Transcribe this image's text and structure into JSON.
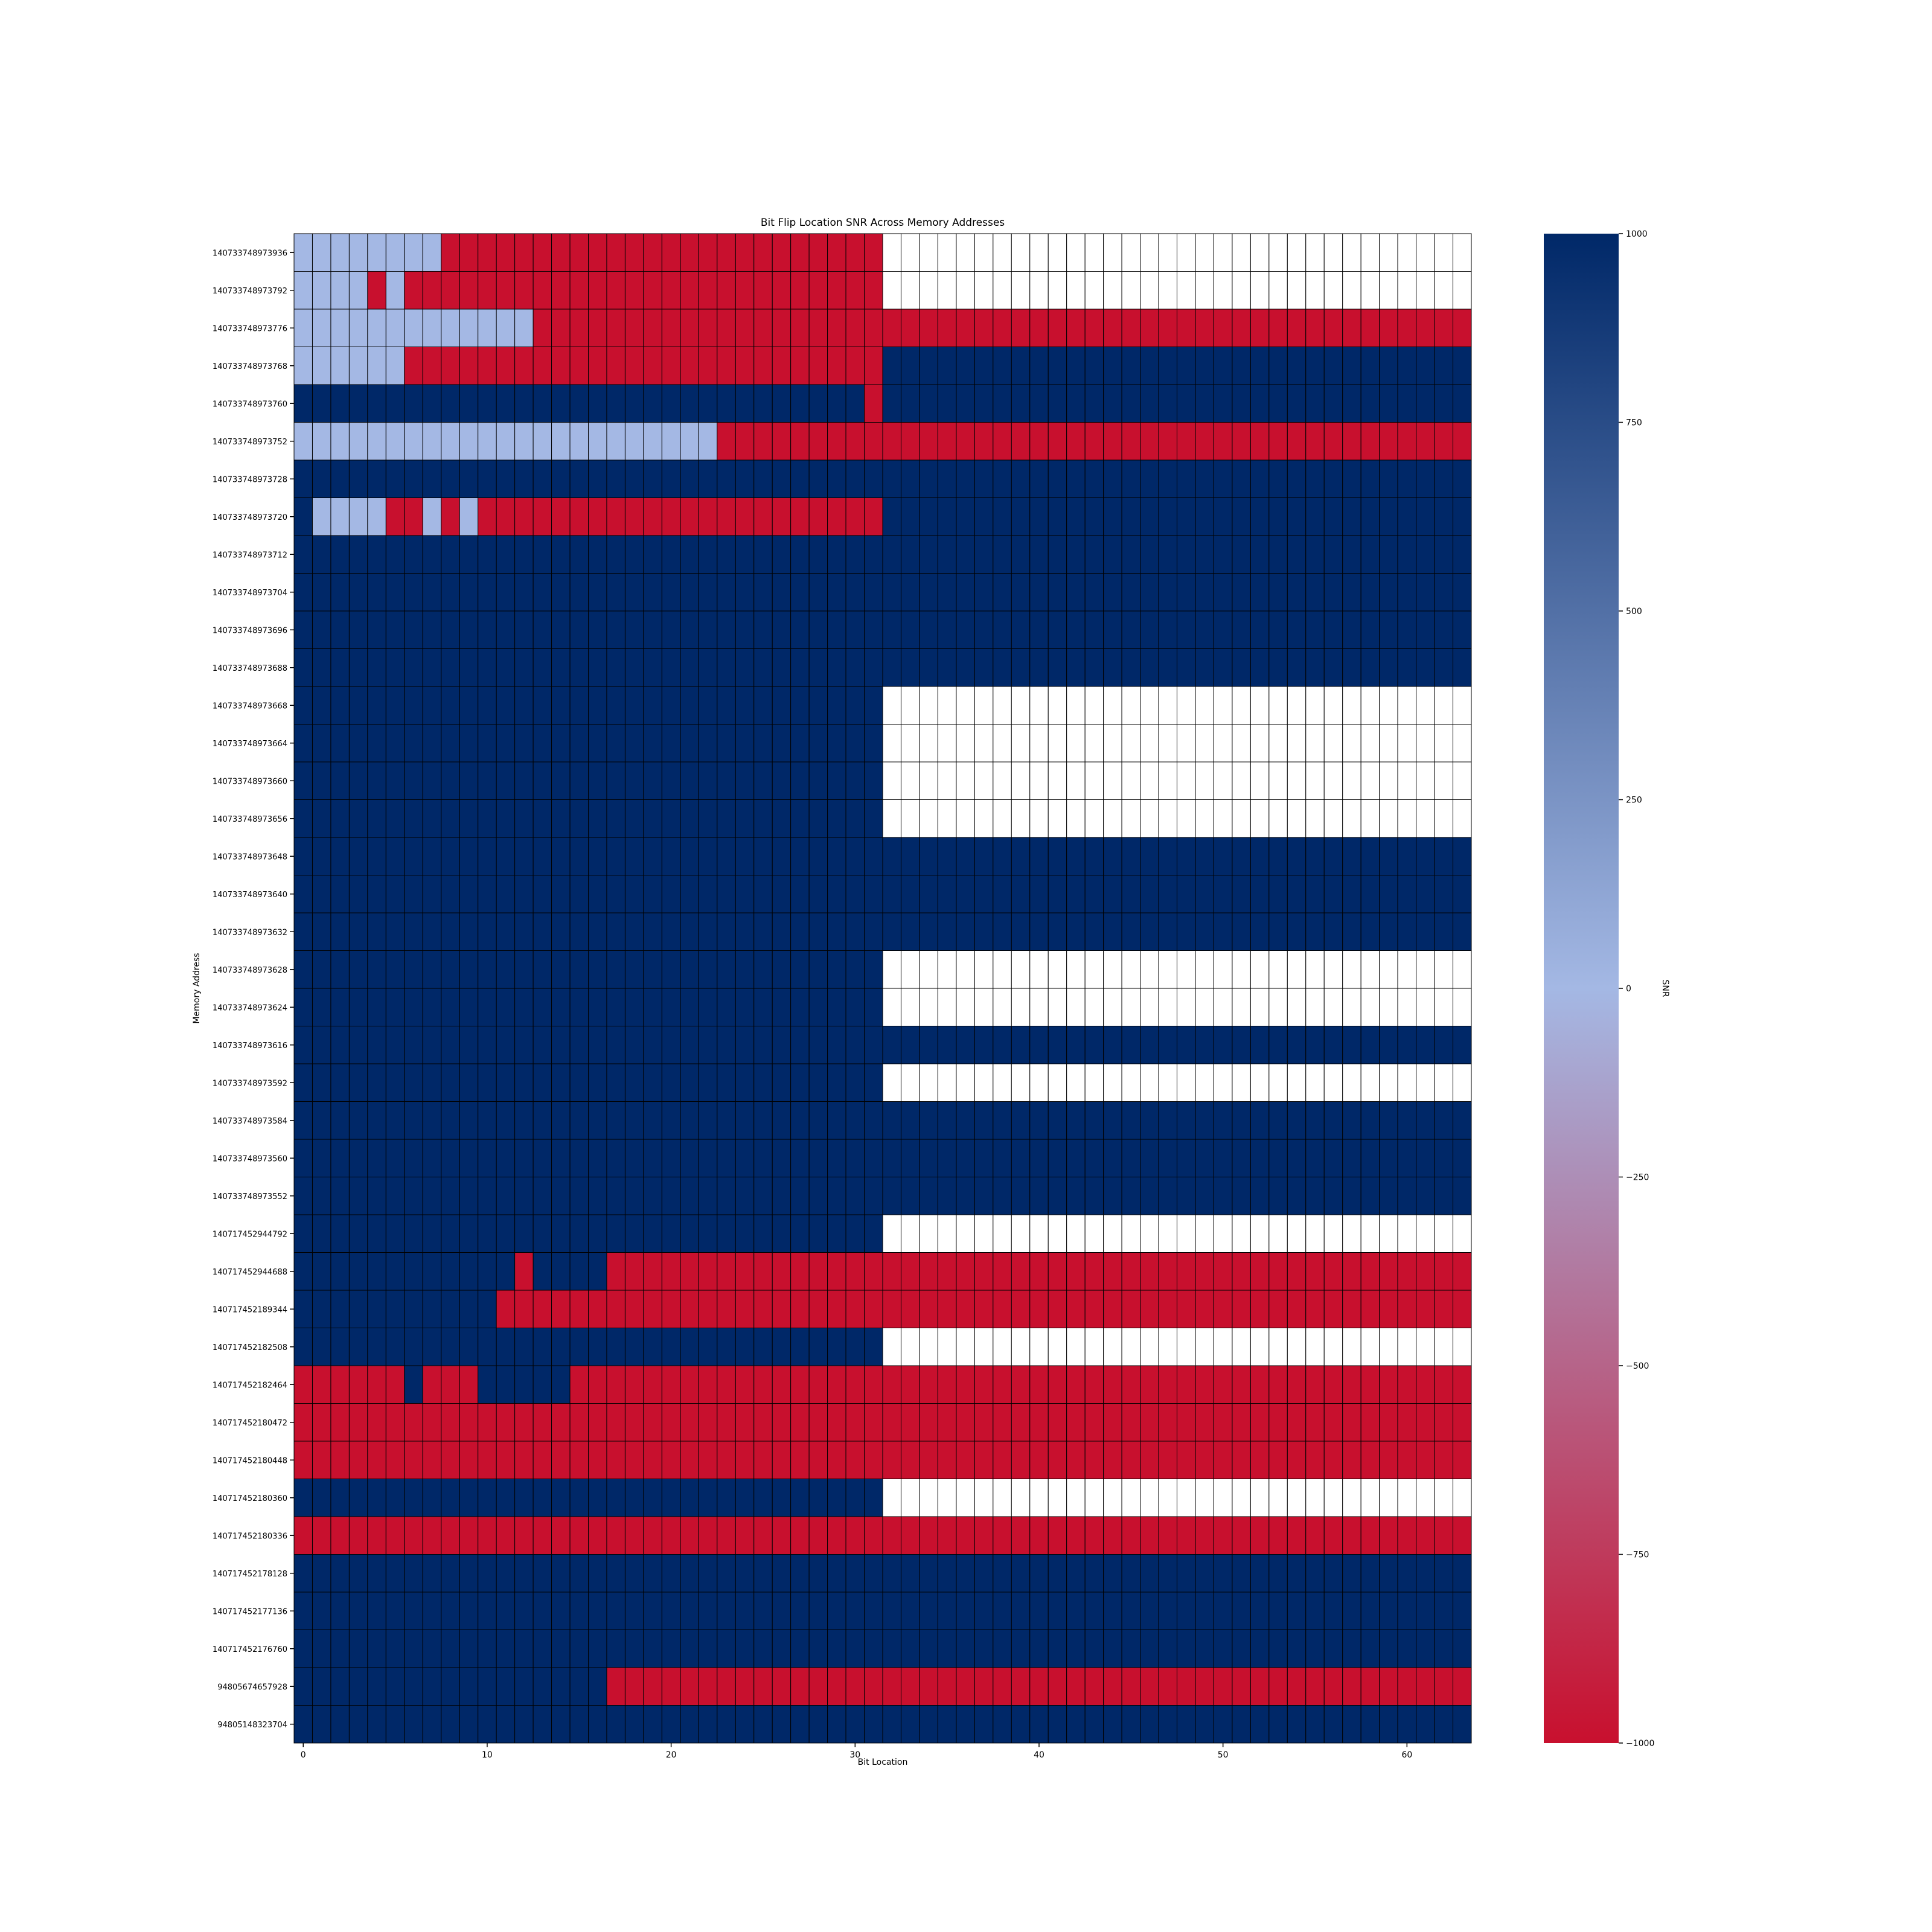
{
  "chart_data": {
    "type": "heatmap",
    "title": "Bit Flip Location SNR Across Memory Addresses",
    "xlabel": "Bit Location",
    "ylabel": "Memory Address",
    "colorbar_label": "SNR",
    "x_ticks": [
      0,
      10,
      20,
      30,
      40,
      50,
      60
    ],
    "x_tick_labels": [
      "0",
      "10",
      "20",
      "30",
      "40",
      "50",
      "60"
    ],
    "colorbar_ticks": [
      1000,
      750,
      500,
      250,
      0,
      -250,
      -500,
      -750,
      -1000
    ],
    "colorbar_tick_labels": [
      "1000",
      "750",
      "500",
      "250",
      "0",
      "−250",
      "−500",
      "−750",
      "−1000"
    ],
    "color_range": [
      -1000,
      1000
    ],
    "colormap": [
      "#c8102e",
      "#a4b8e4",
      "#002868"
    ],
    "missing_color": "#ffffff",
    "n_bits": 64,
    "addresses": [
      "140733748973936",
      "140733748973792",
      "140733748973776",
      "140733748973768",
      "140733748973760",
      "140733748973752",
      "140733748973728",
      "140733748973720",
      "140733748973712",
      "140733748973704",
      "140733748973696",
      "140733748973688",
      "140733748973668",
      "140733748973664",
      "140733748973660",
      "140733748973656",
      "140733748973648",
      "140733748973640",
      "140733748973632",
      "140733748973628",
      "140733748973624",
      "140733748973616",
      "140733748973592",
      "140733748973584",
      "140733748973560",
      "140733748973552",
      "140717452944792",
      "140717452944688",
      "140717452189344",
      "140717452182508",
      "140717452182464",
      "140717452180472",
      "140717452180448",
      "140717452180360",
      "140717452180336",
      "140717452178128",
      "140717452177136",
      "140717452176760",
      "94805674657928",
      "94805148323704"
    ],
    "encoding_note": "each row string has one character per bit location: H = SNR 1000, L = SNR 0, R = SNR -1000, . = no value (white)",
    "rows": [
      "LLLLLLLLRRRRRRRRRRRRRRRRRRRRRRRR................................",
      "LLLLRLRRRRRRRRRRRRRRRRRRRRRRRRRR................................",
      "LLLLLLLLLLLLLRRRRRRRRRRRRRRRRRRRRRRRRRRRRRRRRRRRRRRRRRRRRRRRRRRR",
      "LLLLLLRRRRRRRRRRRRRRRRRRRRRRRRRRHHHHHHHHHHHHHHHHHHHHHHHHHHHHHHHH",
      "HHHHHHHHHHHHHHHHHHHHHHHHHHHHHHHRHHHHHHHHHHHHHHHHHHHHHHHHHHHHHHHH",
      "LLLLLLLLLLLLLLLLLLLLLLLRRRRRRRRRRRRRRRRRRRRRRRRRRRRRRRRRRRRRRRRR",
      "HHHHHHHHHHHHHHHHHHHHHHHHHHHHHHHHHHHHHHHHHHHHHHHHHHHHHHHHHHHHHHHH",
      "HLLLLRRLRLRRRRRRRRRRRRRRRRRRRRRRHHHHHHHHHHHHHHHHHHHHHHHHHHHHHHHH",
      "HHHHHHHHHHHHHHHHHHHHHHHHHHHHHHHHHHHHHHHHHHHHHHHHHHHHHHHHHHHHHHHH",
      "HHHHHHHHHHHHHHHHHHHHHHHHHHHHHHHHHHHHHHHHHHHHHHHHHHHHHHHHHHHHHHHH",
      "HHHHHHHHHHHHHHHHHHHHHHHHHHHHHHHHHHHHHHHHHHHHHHHHHHHHHHHHHHHHHHHH",
      "HHHHHHHHHHHHHHHHHHHHHHHHHHHHHHHHHHHHHHHHHHHHHHHHHHHHHHHHHHHHHHHH",
      "HHHHHHHHHHHHHHHHHHHHHHHHHHHHHHHH................................",
      "HHHHHHHHHHHHHHHHHHHHHHHHHHHHHHHH................................",
      "HHHHHHHHHHHHHHHHHHHHHHHHHHHHHHHH................................",
      "HHHHHHHHHHHHHHHHHHHHHHHHHHHHHHHH................................",
      "HHHHHHHHHHHHHHHHHHHHHHHHHHHHHHHHHHHHHHHHHHHHHHHHHHHHHHHHHHHHHHHH",
      "HHHHHHHHHHHHHHHHHHHHHHHHHHHHHHHHHHHHHHHHHHHHHHHHHHHHHHHHHHHHHHHH",
      "HHHHHHHHHHHHHHHHHHHHHHHHHHHHHHHHHHHHHHHHHHHHHHHHHHHHHHHHHHHHHHHH",
      "HHHHHHHHHHHHHHHHHHHHHHHHHHHHHHHH................................",
      "HHHHHHHHHHHHHHHHHHHHHHHHHHHHHHHH................................",
      "HHHHHHHHHHHHHHHHHHHHHHHHHHHHHHHHHHHHHHHHHHHHHHHHHHHHHHHHHHHHHHHH",
      "HHHHHHHHHHHHHHHHHHHHHHHHHHHHHHHH................................",
      "HHHHHHHHHHHHHHHHHHHHHHHHHHHHHHHHHHHHHHHHHHHHHHHHHHHHHHHHHHHHHHHH",
      "HHHHHHHHHHHHHHHHHHHHHHHHHHHHHHHHHHHHHHHHHHHHHHHHHHHHHHHHHHHHHHHH",
      "HHHHHHHHHHHHHHHHHHHHHHHHHHHHHHHHHHHHHHHHHHHHHHHHHHHHHHHHHHHHHHHH",
      "HHHHHHHHHHHHHHHHHHHHHHHHHHHHHHHH................................",
      "HHHHHHHHHHHHRHHHHRRRRRRRRRRRRRRRRRRRRRRRRRRRRRRRRRRRRRRRRRRRRRRR",
      "HHHHHHHHHHHRRRRRRRRRRRRRRRRRRRRRRRRRRRRRRRRRRRRRRRRRRRRRRRRRRRRR",
      "HHHHHHHHHHHHHHHHHHHHHHHHHHHHHHHH................................",
      "RRRRRRHRRRHHHHHRRRRRRRRRRRRRRRRRRRRRRRRRRRRRRRRRRRRRRRRRRRRRRRRR",
      "RRRRRRRRRRRRRRRRRRRRRRRRRRRRRRRRRRRRRRRRRRRRRRRRRRRRRRRRRRRRRRRR",
      "RRRRRRRRRRRRRRRRRRRRRRRRRRRRRRRRRRRRRRRRRRRRRRRRRRRRRRRRRRRRRRRR",
      "HHHHHHHHHHHHHHHHHHHHHHHHHHHHHHHH................................",
      "RRRRRRRRRRRRRRRRRRRRRRRRRRRRRRRRRRRRRRRRRRRRRRRRRRRRRRRRRRRRRRRR",
      "HHHHHHHHHHHHHHHHHHHHHHHHHHHHHHHHHHHHHHHHHHHHHHHHHHHHHHHHHHHHHHHH",
      "HHHHHHHHHHHHHHHHHHHHHHHHHHHHHHHHHHHHHHHHHHHHHHHHHHHHHHHHHHHHHHHH",
      "HHHHHHHHHHHHHHHHHHHHHHHHHHHHHHHHHHHHHHHHHHHHHHHHHHHHHHHHHHHHHHHH",
      "HHHHHHHHHHHHHHHHHRRRRRRRRRRRRRRRRRRRRRRRRRRRRRRRRRRRRRRRRRRRRRRR",
      "HHHHHHHHHHHHHHHHHHHHHHHHHHHHHHHHHHHHHHHHHHHHHHHHHHHHHHHHHHHHHHHH"
    ]
  }
}
